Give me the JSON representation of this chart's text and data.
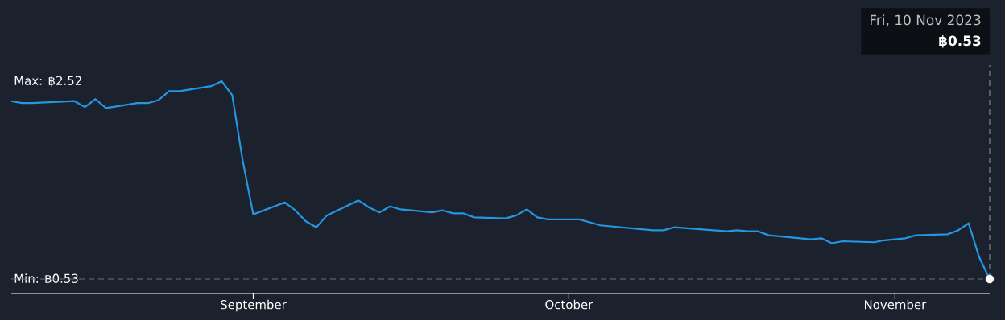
{
  "chart_data": {
    "type": "line",
    "x": [
      "2023-08-09",
      "2023-08-10",
      "2023-08-11",
      "2023-08-15",
      "2023-08-16",
      "2023-08-17",
      "2023-08-18",
      "2023-08-21",
      "2023-08-22",
      "2023-08-23",
      "2023-08-24",
      "2023-08-25",
      "2023-08-28",
      "2023-08-29",
      "2023-08-30",
      "2023-08-31",
      "2023-09-01",
      "2023-09-04",
      "2023-09-05",
      "2023-09-06",
      "2023-09-07",
      "2023-09-08",
      "2023-09-11",
      "2023-09-12",
      "2023-09-13",
      "2023-09-14",
      "2023-09-15",
      "2023-09-18",
      "2023-09-19",
      "2023-09-20",
      "2023-09-21",
      "2023-09-22",
      "2023-09-25",
      "2023-09-26",
      "2023-09-27",
      "2023-09-28",
      "2023-09-29",
      "2023-10-02",
      "2023-10-03",
      "2023-10-04",
      "2023-10-09",
      "2023-10-10",
      "2023-10-11",
      "2023-10-16",
      "2023-10-17",
      "2023-10-18",
      "2023-10-19",
      "2023-10-20",
      "2023-10-24",
      "2023-10-25",
      "2023-10-26",
      "2023-10-27",
      "2023-10-30",
      "2023-10-31",
      "2023-11-02",
      "2023-11-03",
      "2023-11-06",
      "2023-11-07",
      "2023-11-08",
      "2023-11-09",
      "2023-11-10"
    ],
    "series": [
      {
        "color": "#2596e0",
        "values": [
          2.32,
          2.3,
          2.3,
          2.32,
          2.26,
          2.34,
          2.25,
          2.3,
          2.3,
          2.33,
          2.42,
          2.42,
          2.47,
          2.52,
          2.38,
          1.72,
          1.18,
          1.3,
          1.22,
          1.11,
          1.05,
          1.17,
          1.32,
          1.25,
          1.2,
          1.26,
          1.23,
          1.2,
          1.22,
          1.19,
          1.19,
          1.15,
          1.14,
          1.17,
          1.23,
          1.15,
          1.13,
          1.13,
          1.1,
          1.07,
          1.02,
          1.02,
          1.05,
          1.01,
          1.02,
          1.01,
          1.01,
          0.97,
          0.93,
          0.94,
          0.89,
          0.91,
          0.9,
          0.92,
          0.94,
          0.97,
          0.98,
          1.02,
          1.09,
          0.75,
          0.53
        ]
      },
      {
        "type": "scatter",
        "color": "#ffffff",
        "x": [
          "2023-11-10"
        ],
        "values": [
          0.53
        ]
      }
    ],
    "xlim": [
      "2023-08-09",
      "2023-11-10"
    ],
    "xticks": [
      {
        "value": "2023-09-01",
        "label": "September"
      },
      {
        "value": "2023-10-01",
        "label": "October"
      },
      {
        "value": "2023-11-01",
        "label": "November"
      }
    ],
    "ylim": [
      0.53,
      2.52
    ],
    "yticks": [
      {
        "value": 0.53,
        "label": "Min: ฿0.53"
      },
      {
        "value": 2.52,
        "label": "Max: ฿2.52"
      }
    ],
    "grid": false,
    "line_style": "solid",
    "ref_lines": [
      {
        "axis": "y",
        "value": 0.53,
        "color": "#6b7280",
        "line_style": "dashed"
      },
      {
        "axis": "x",
        "value": "2023-11-10",
        "color": "#6b7280",
        "line_style": "dashed"
      }
    ],
    "annotations": [
      "Fri, 10 Nov 2023",
      "**฿0.53**"
    ]
  }
}
